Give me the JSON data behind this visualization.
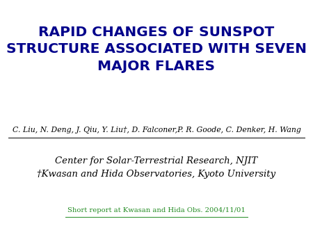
{
  "title_line1": "RAPID CHANGES OF SUNSPOT",
  "title_line2": "STRUCTURE ASSOCIATED WITH SEVEN",
  "title_line3": "MAJOR FLARES",
  "title_color": "#00008B",
  "authors": "C. Liu, N. Deng, J. Qiu, Y. Liu†, D. Falconer,P. R. Goode, C. Denker, H. Wang",
  "authors_color": "#000000",
  "affil1": "Center for Solar-Terrestrial Research, NJIT",
  "affil2": "†Kwasan and Hida Observatories, Kyoto University",
  "affil_color": "#000000",
  "link_text": "Short report at Kwasan and Hida Obs. 2004/11/01",
  "link_color": "#228B22",
  "background_color": "#ffffff"
}
